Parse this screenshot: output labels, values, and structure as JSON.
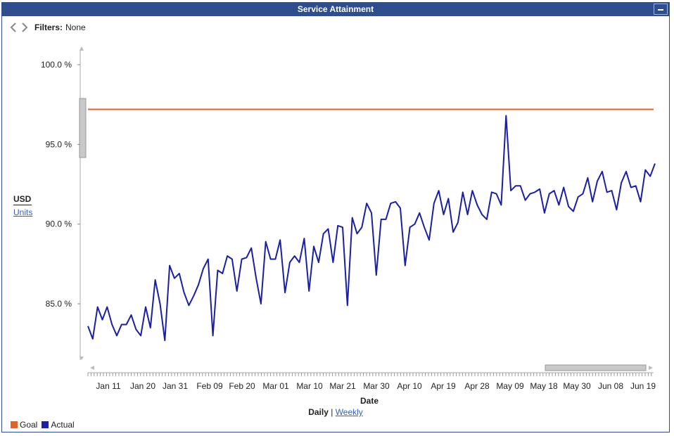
{
  "window": {
    "title": "Service Attainment"
  },
  "filters": {
    "label": "Filters:",
    "value": "None"
  },
  "units": {
    "current": "USD",
    "alternate": "Units"
  },
  "period": {
    "current": "Daily",
    "separator": "|",
    "alternate": "Weekly"
  },
  "colors": {
    "goal": "#e0622a",
    "actual": "#1a1fa3",
    "title_bar": "#2e4e8f",
    "link": "#3a63b0"
  },
  "chart_data": {
    "type": "line",
    "xlabel": "Date",
    "ylabel": "",
    "ylim": [
      81.5,
      101.5
    ],
    "yticks": [
      85.0,
      90.0,
      95.0,
      100.0
    ],
    "ytick_labels": [
      "85.0 %",
      "90.0 %",
      "95.0 %",
      "100.0 %"
    ],
    "xticks": [
      "Jan 11",
      "Jan 20",
      "Jan 31",
      "Feb 09",
      "Feb 20",
      "Mar 01",
      "Mar 10",
      "Mar 21",
      "Mar 30",
      "Apr 10",
      "Apr 19",
      "Apr 28",
      "May 09",
      "May 18",
      "May 30",
      "Jun 08",
      "Jun 19"
    ],
    "grid": false,
    "legend_position": "bottom-left",
    "series": [
      {
        "name": "Goal",
        "values": [
          97.2,
          97.2
        ]
      },
      {
        "name": "Actual",
        "values": [
          83.6,
          82.8,
          84.8,
          84.0,
          84.8,
          83.7,
          83.0,
          83.7,
          83.7,
          84.3,
          83.4,
          83.0,
          84.8,
          83.5,
          86.5,
          85.0,
          82.7,
          87.4,
          86.6,
          86.9,
          85.7,
          84.9,
          85.5,
          86.2,
          87.2,
          87.8,
          83.0,
          87.1,
          86.9,
          88.0,
          87.8,
          85.8,
          87.8,
          87.9,
          88.5,
          86.6,
          85.0,
          88.9,
          87.8,
          87.8,
          89.0,
          85.7,
          87.6,
          88.0,
          87.6,
          89.1,
          85.8,
          88.6,
          87.6,
          89.4,
          89.7,
          87.6,
          89.9,
          89.8,
          84.9,
          90.4,
          89.4,
          89.8,
          91.3,
          90.7,
          86.8,
          90.3,
          90.3,
          91.3,
          91.4,
          91.0,
          87.4,
          89.8,
          90.0,
          90.7,
          89.8,
          89.0,
          91.3,
          92.1,
          90.6,
          91.6,
          89.5,
          90.1,
          92.0,
          90.6,
          92.1,
          91.2,
          90.6,
          90.3,
          92.0,
          91.9,
          91.2,
          96.8,
          92.1,
          92.4,
          92.4,
          91.5,
          91.9,
          92.0,
          92.2,
          90.7,
          91.9,
          92.1,
          91.2,
          92.3,
          91.1,
          90.8,
          91.7,
          91.9,
          92.9,
          91.4,
          92.7,
          93.3,
          92.0,
          92.1,
          90.9,
          92.6,
          93.3,
          92.3,
          92.4,
          91.4,
          93.4,
          93.0,
          93.8
        ]
      }
    ]
  }
}
